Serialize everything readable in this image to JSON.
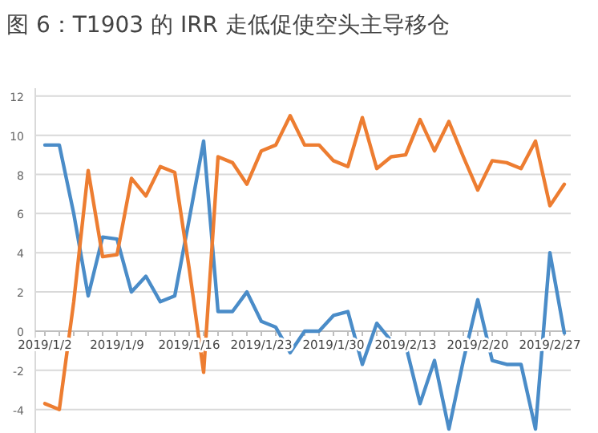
{
  "chart_data": {
    "type": "line",
    "title": "图 6：T1903 的 IRR 走低促使空头主导移仓",
    "categories": [
      "2019/1/2",
      null,
      null,
      null,
      null,
      "2019/1/9",
      null,
      null,
      null,
      null,
      "2019/1/16",
      null,
      null,
      null,
      null,
      "2019/1/23",
      null,
      null,
      null,
      null,
      "2019/1/30",
      null,
      null,
      null,
      null,
      "2019/2/13",
      null,
      null,
      null,
      null,
      "2019/2/20",
      null,
      null,
      null,
      null,
      "2019/2/27",
      null
    ],
    "series": [
      {
        "color": "#4a8cc8",
        "values": [
          9.5,
          9.5,
          6.0,
          1.8,
          4.8,
          4.7,
          2.0,
          2.8,
          1.5,
          1.8,
          5.7,
          9.7,
          1.0,
          1.0,
          2.0,
          0.5,
          0.2,
          -1.1,
          0.0,
          0.0,
          0.8,
          1.0,
          -1.7,
          0.4,
          -0.5,
          -0.7,
          -3.7,
          -1.5,
          -5.0,
          -1.5,
          1.6,
          -1.5,
          -1.7,
          -1.7,
          -5.0,
          4.0,
          -0.1
        ]
      },
      {
        "color": "#ed7d31",
        "values": [
          -3.7,
          -4.0,
          1.5,
          8.2,
          3.8,
          3.9,
          7.8,
          6.9,
          8.4,
          8.1,
          3.2,
          -2.1,
          8.9,
          8.6,
          7.5,
          9.2,
          9.5,
          11.0,
          9.5,
          9.5,
          8.7,
          8.4,
          10.9,
          8.3,
          8.9,
          9.0,
          10.8,
          9.2,
          10.7,
          8.9,
          7.2,
          8.7,
          8.6,
          8.3,
          9.7,
          6.4,
          7.5
        ]
      }
    ],
    "ylim": [
      -5.2,
      12.4
    ],
    "yticks": [
      -4,
      -2,
      0,
      2,
      4,
      6,
      8,
      10,
      12
    ],
    "grid": "y",
    "marker": "none",
    "line_style": "solid"
  }
}
